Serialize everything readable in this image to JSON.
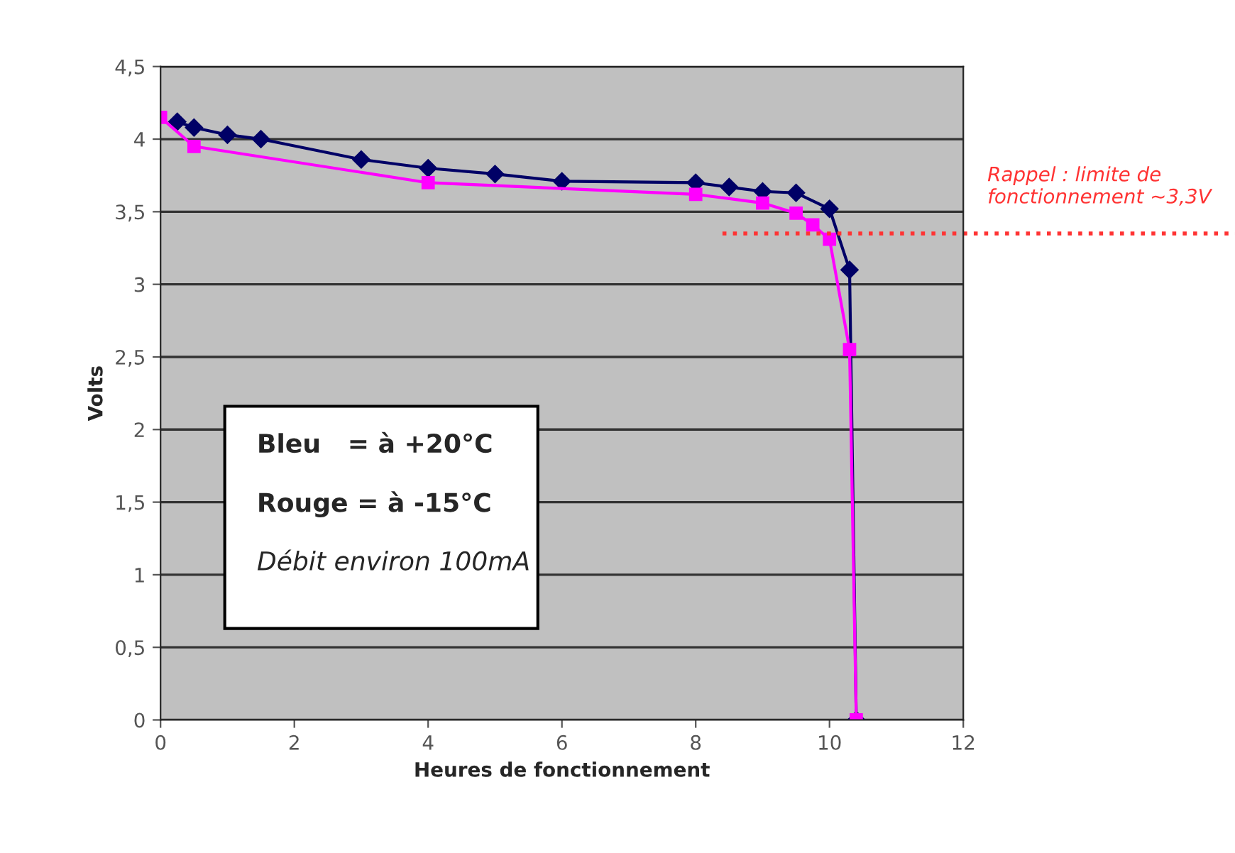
{
  "chart_data": {
    "type": "line",
    "xlabel": "Heures de fonctionnement",
    "ylabel": "Volts",
    "xlim": [
      0,
      12
    ],
    "xticks": [
      0,
      2,
      4,
      6,
      8,
      10,
      12
    ],
    "ylim": [
      0,
      4.5
    ],
    "yticks": [
      {
        "value": 0,
        "label": "0"
      },
      {
        "value": 0.5,
        "label": "0,5"
      },
      {
        "value": 1,
        "label": "1"
      },
      {
        "value": 1.5,
        "label": "1,5"
      },
      {
        "value": 2,
        "label": "2"
      },
      {
        "value": 2.5,
        "label": "2,5"
      },
      {
        "value": 3,
        "label": "3"
      },
      {
        "value": 3.5,
        "label": "3,5"
      },
      {
        "value": 4,
        "label": "4"
      },
      {
        "value": 4.5,
        "label": "4,5"
      }
    ],
    "grid": "y",
    "legend": false,
    "series": [
      {
        "color": "#000066",
        "marker": "diamond",
        "x": [
          0.25,
          0.5,
          1,
          1.5,
          3,
          4,
          5,
          6,
          8,
          8.5,
          9,
          9.5,
          10,
          10.3,
          10.4
        ],
        "values": [
          4.12,
          4.08,
          4.03,
          4.0,
          3.86,
          3.8,
          3.76,
          3.71,
          3.7,
          3.67,
          3.64,
          3.63,
          3.52,
          3.1,
          0
        ]
      },
      {
        "color": "#ff00ff",
        "marker": "square",
        "x": [
          0,
          0.5,
          4,
          8,
          9,
          9.5,
          9.75,
          10,
          10.3,
          10.4
        ],
        "values": [
          4.15,
          3.95,
          3.7,
          3.62,
          3.56,
          3.49,
          3.41,
          3.31,
          2.55,
          0
        ]
      }
    ],
    "ref_lines": [
      {
        "axis": "y",
        "value": 3.35,
        "label": "Rappel : limite de fonctionnement ~3,3V",
        "color": "#ff3333",
        "line_style": "dotted"
      }
    ],
    "annotations": [
      "Bleu   = à +20°C",
      "Rouge = à -15°C",
      "Débit environ 100mA"
    ]
  }
}
